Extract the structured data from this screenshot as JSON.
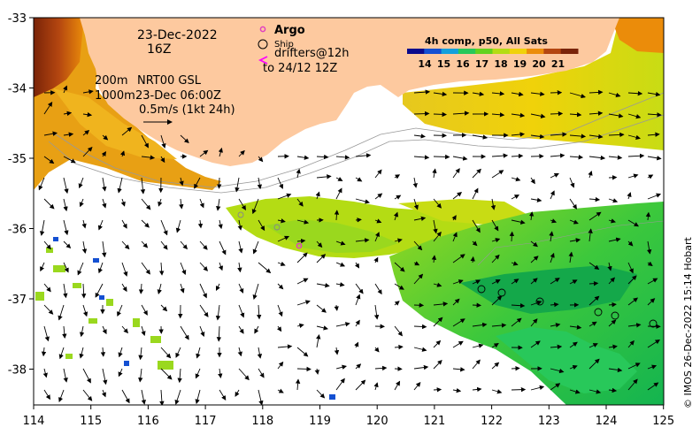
{
  "annotations": {
    "date_line1": "23-Dec-2022",
    "date_line2": "16Z",
    "contour_200": "200m",
    "contour_1000": "1000m",
    "product": "NRT00 GSL",
    "product_time": "23-Dec 06:00Z",
    "vector_scale": "0.5m/s (1kt 24h)"
  },
  "legend": {
    "argo": "Argo",
    "ship": "Ship",
    "drifters_line1": "drifters@12h",
    "drifters_line2": "to 24/12 12Z",
    "argo_color": "#e040c0",
    "drifter_color": "#ff00ff"
  },
  "colorbar": {
    "title": "4h comp, p50, All Sats",
    "ticks": [
      "14",
      "15",
      "16",
      "17",
      "18",
      "19",
      "20",
      "21"
    ],
    "colors": [
      "#0a0a8c",
      "#1450d2",
      "#14a0dc",
      "#28c85a",
      "#64d21e",
      "#b4dc14",
      "#f0d20a",
      "#eb8c0a",
      "#b44610",
      "#7a2408"
    ]
  },
  "axes": {
    "x_ticks": [
      "114",
      "115",
      "116",
      "117",
      "118",
      "119",
      "120",
      "121",
      "122",
      "123",
      "124",
      "125"
    ],
    "y_ticks": [
      "-33",
      "-34",
      "-35",
      "-36",
      "-37",
      "-38"
    ]
  },
  "credit": "© IMOS 26-Dec-2022 15:14 Hobart",
  "colors": {
    "land": "#fdc99f",
    "frame": "#000000"
  }
}
